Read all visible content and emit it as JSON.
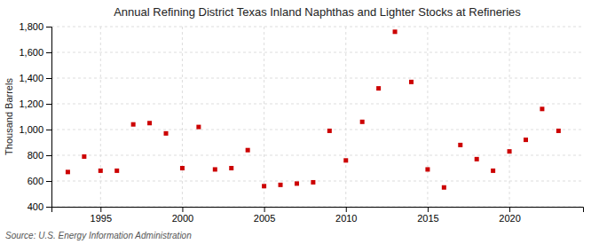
{
  "chart_data": {
    "type": "scatter",
    "title": "Annual Refining District Texas Inland Naphthas and Lighter Stocks at Refineries",
    "ylabel": "Thousand Barrels",
    "source": "Source: U.S. Energy Information Administration",
    "color": "#cc0000",
    "marker": "square",
    "grid": true,
    "x": [
      1993,
      1994,
      1995,
      1996,
      1997,
      1998,
      1999,
      2000,
      2001,
      2002,
      2003,
      2004,
      2005,
      2006,
      2007,
      2008,
      2009,
      2010,
      2011,
      2012,
      2013,
      2014,
      2015,
      2016,
      2017,
      2018,
      2019,
      2020,
      2021,
      2022,
      2023
    ],
    "values": [
      670,
      790,
      680,
      680,
      1040,
      1050,
      970,
      700,
      1020,
      690,
      700,
      840,
      560,
      570,
      580,
      590,
      990,
      760,
      1060,
      1320,
      1760,
      1370,
      690,
      550,
      880,
      770,
      680,
      830,
      920,
      1160,
      990
    ],
    "xlim": [
      1992.0,
      2024.5
    ],
    "xticks": [
      1995,
      2000,
      2005,
      2010,
      2015,
      2020
    ],
    "ylim": [
      400,
      1800
    ],
    "yticks": [
      400,
      600,
      800,
      {
        "value": 1000,
        "label": "1,000"
      },
      {
        "value": 1200,
        "label": "1,200"
      },
      {
        "value": 1400,
        "label": "1,400"
      },
      {
        "value": 1600,
        "label": "1,600"
      },
      {
        "value": 1800,
        "label": "1,800"
      }
    ]
  }
}
